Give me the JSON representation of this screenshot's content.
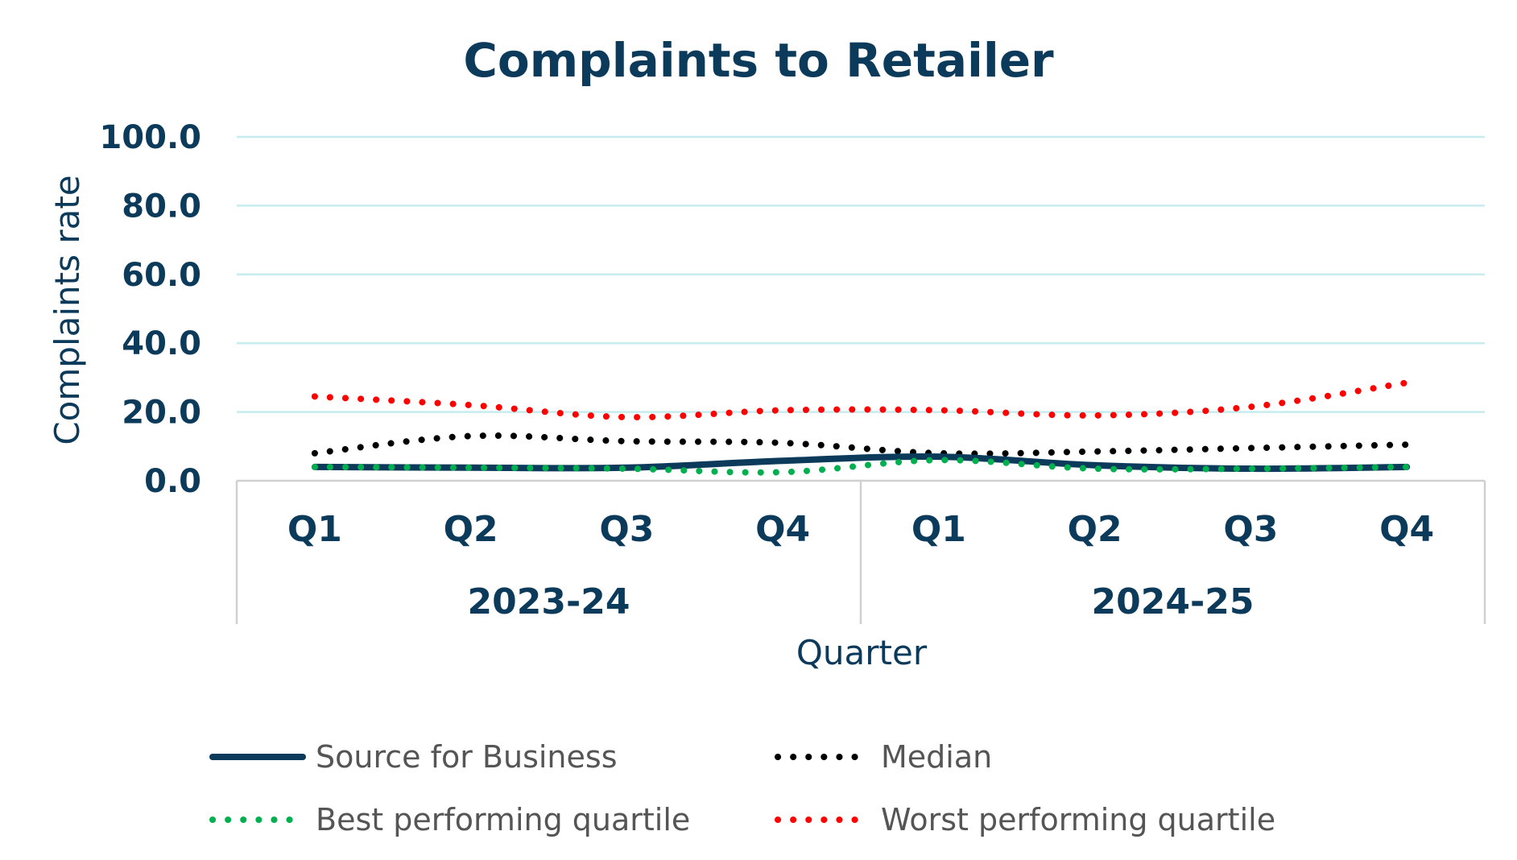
{
  "chart_data": {
    "type": "line",
    "title": "Complaints to Retailer",
    "xlabel": "Quarter",
    "ylabel": "Complaints rate",
    "ylim": [
      0,
      100
    ],
    "yticks": [
      "0.0",
      "20.0",
      "40.0",
      "60.0",
      "80.0",
      "100.0"
    ],
    "categories": [
      "Q1",
      "Q2",
      "Q3",
      "Q4",
      "Q1",
      "Q2",
      "Q3",
      "Q4"
    ],
    "groups": [
      {
        "label": "2023-24",
        "count": 4
      },
      {
        "label": "2024-25",
        "count": 4
      }
    ],
    "grid": true,
    "legend_position": "bottom",
    "series": [
      {
        "name": "Source for Business",
        "style": "solid",
        "color": "#0b3a5b",
        "values": [
          4.0,
          3.8,
          3.8,
          5.8,
          7.0,
          4.5,
          3.5,
          4.0
        ]
      },
      {
        "name": "Median",
        "style": "dotted",
        "color": "#000000",
        "values": [
          8.0,
          13.0,
          11.5,
          11.0,
          8.0,
          8.5,
          9.5,
          10.5
        ]
      },
      {
        "name": "Best performing quartile",
        "style": "dotted",
        "color": "#00b050",
        "values": [
          4.0,
          3.8,
          3.5,
          2.5,
          6.0,
          3.5,
          3.5,
          4.0
        ]
      },
      {
        "name": "Worst performing quartile",
        "style": "dotted",
        "color": "#ff0000",
        "values": [
          24.5,
          22.0,
          18.5,
          20.5,
          20.5,
          19.0,
          21.5,
          28.5
        ]
      }
    ]
  }
}
